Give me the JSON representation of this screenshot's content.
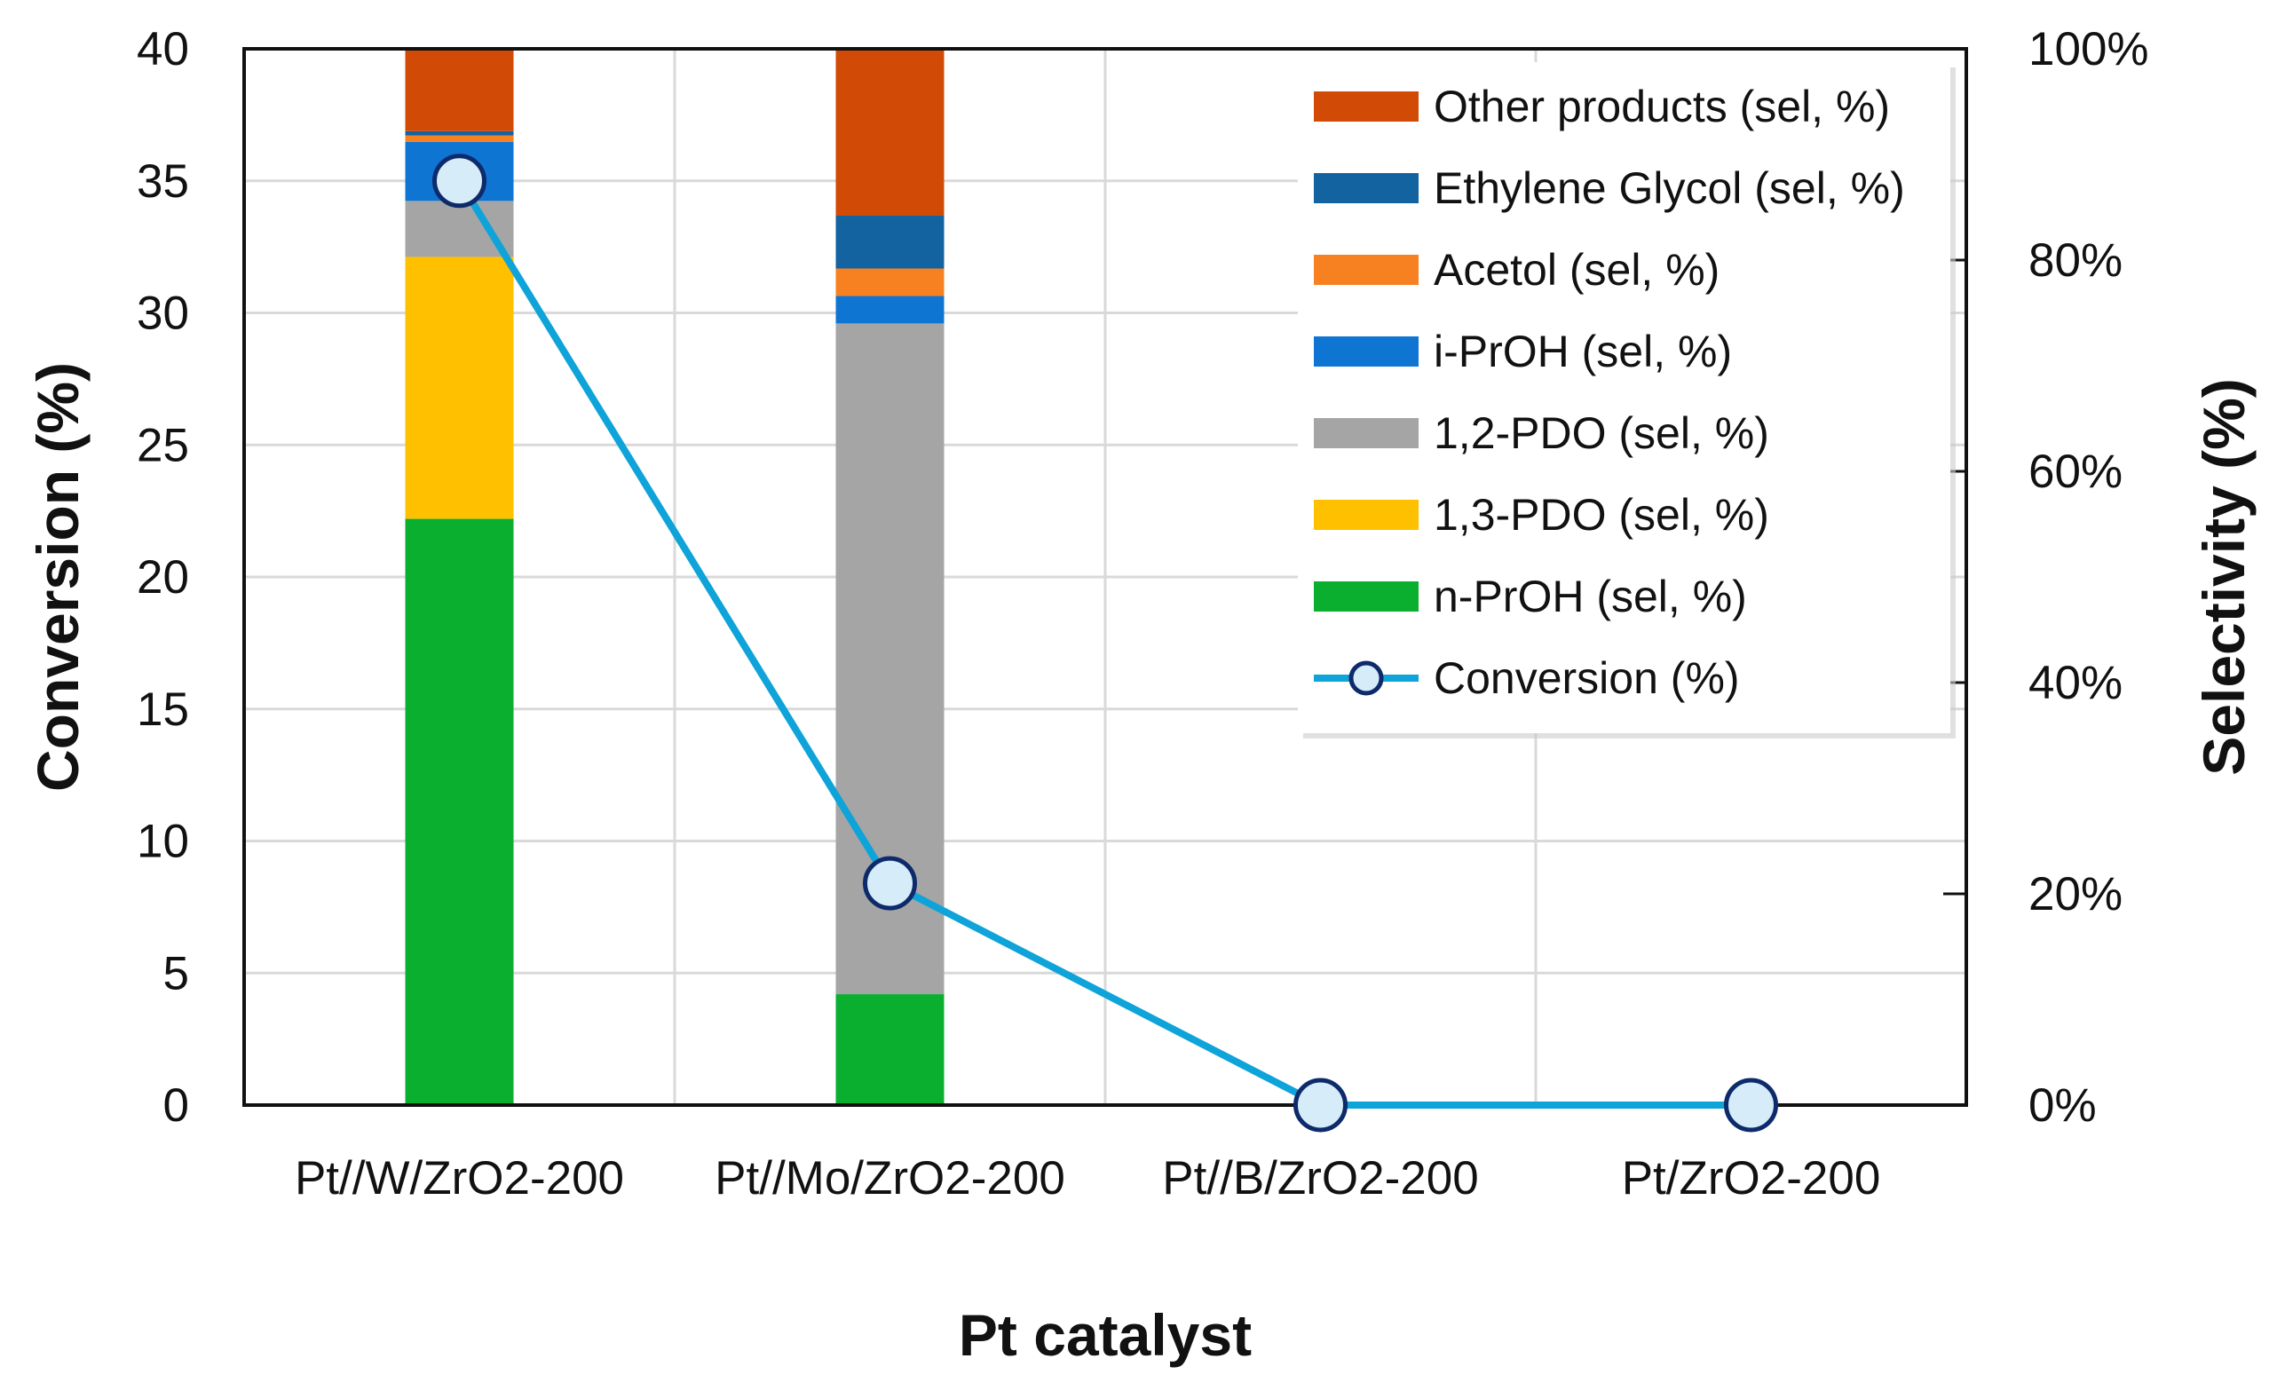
{
  "chart_data": {
    "type": "bar",
    "subtype": "stacked-bar-with-line",
    "title": "",
    "xlabel": "Pt catalyst",
    "ylabel": "Conversion (%)",
    "y2label": "Selectivity (%)",
    "ylim": [
      0,
      40
    ],
    "y2lim": [
      0,
      100
    ],
    "yticks": [
      "0",
      "5",
      "10",
      "15",
      "20",
      "25",
      "30",
      "35",
      "40"
    ],
    "y2ticks": [
      "0%",
      "20%",
      "40%",
      "60%",
      "80%",
      "100%"
    ],
    "grid": true,
    "legend_position": "top-right",
    "categories": [
      "Pt//W/ZrO2-200",
      "Pt//Mo/ZrO2-200",
      "Pt//B/ZrO2-200",
      "Pt/ZrO2-200"
    ],
    "series": [
      {
        "name": "n-PrOH (sel, %)",
        "axis": "right",
        "kind": "bar",
        "color": "#0aaf2f",
        "values": [
          55.5,
          10.5,
          0,
          0
        ]
      },
      {
        "name": "1,3-PDO (sel, %)",
        "axis": "right",
        "kind": "bar",
        "color": "#ffc000",
        "values": [
          24.8,
          0,
          0,
          0
        ]
      },
      {
        "name": "1,2-PDO (sel, %)",
        "axis": "right",
        "kind": "bar",
        "color": "#a5a5a5",
        "values": [
          5.3,
          63.5,
          0,
          0
        ]
      },
      {
        "name": "i-PrOH (sel, %)",
        "axis": "right",
        "kind": "bar",
        "color": "#0f75d3",
        "values": [
          5.6,
          2.6,
          0,
          0
        ]
      },
      {
        "name": "Acetol (sel, %)",
        "axis": "right",
        "kind": "bar",
        "color": "#f78021",
        "values": [
          0.6,
          2.6,
          0,
          0
        ]
      },
      {
        "name": "Ethylene Glycol (sel, %)",
        "axis": "right",
        "kind": "bar",
        "color": "#1363a0",
        "values": [
          0.4,
          5.0,
          0,
          0
        ]
      },
      {
        "name": "Other products (sel, %)",
        "axis": "right",
        "kind": "bar",
        "color": "#d14a06",
        "values": [
          7.8,
          15.8,
          0,
          0
        ]
      },
      {
        "name": "Conversion (%)",
        "axis": "left",
        "kind": "line",
        "color": "#0ea3d9",
        "marker_fill": "#d6ecf8",
        "marker_edge": "#0d2a6b",
        "values": [
          35.0,
          8.4,
          0,
          0
        ]
      }
    ],
    "legend_order": [
      "Other products (sel, %)",
      "Ethylene Glycol (sel, %)",
      "Acetol (sel, %)",
      "i-PrOH (sel, %)",
      "1,2-PDO (sel, %)",
      "1,3-PDO (sel, %)",
      "n-PrOH (sel, %)",
      "Conversion (%)"
    ]
  }
}
